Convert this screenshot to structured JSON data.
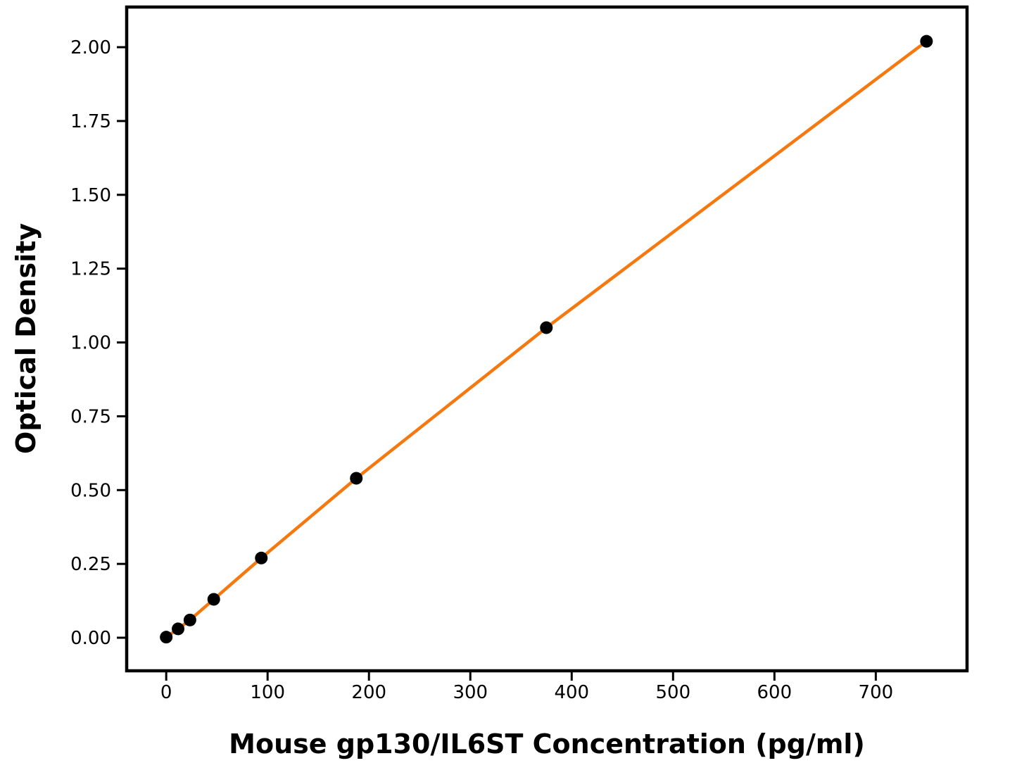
{
  "chart_data": {
    "type": "scatter",
    "subtype": "line-with-markers",
    "title": "",
    "xlabel": "Mouse gp130/IL6ST Concentration (pg/ml)",
    "ylabel": "Optical Density",
    "x": [
      0,
      11.7,
      23.4,
      46.9,
      93.8,
      187.5,
      375,
      750
    ],
    "y": [
      0.002,
      0.03,
      0.06,
      0.13,
      0.27,
      0.54,
      1.05,
      2.02
    ],
    "xtick_labels": [
      "0",
      "100",
      "200",
      "300",
      "400",
      "500",
      "600",
      "700"
    ],
    "xtick_values": [
      0,
      100,
      200,
      300,
      400,
      500,
      600,
      700
    ],
    "ytick_labels": [
      "0.00",
      "0.25",
      "0.50",
      "0.75",
      "1.00",
      "1.25",
      "1.50",
      "1.75",
      "2.00"
    ],
    "ytick_values": [
      0,
      0.25,
      0.5,
      0.75,
      1.0,
      1.25,
      1.5,
      1.75,
      2.0
    ],
    "xlim": [
      -39,
      790
    ],
    "ylim": [
      -0.112,
      2.136
    ],
    "grid": false,
    "legend": null,
    "colors": {
      "line": "#F5790F",
      "marker": "#000000",
      "axis": "#000000",
      "text": "#000000",
      "background": "#FFFFFF"
    }
  }
}
